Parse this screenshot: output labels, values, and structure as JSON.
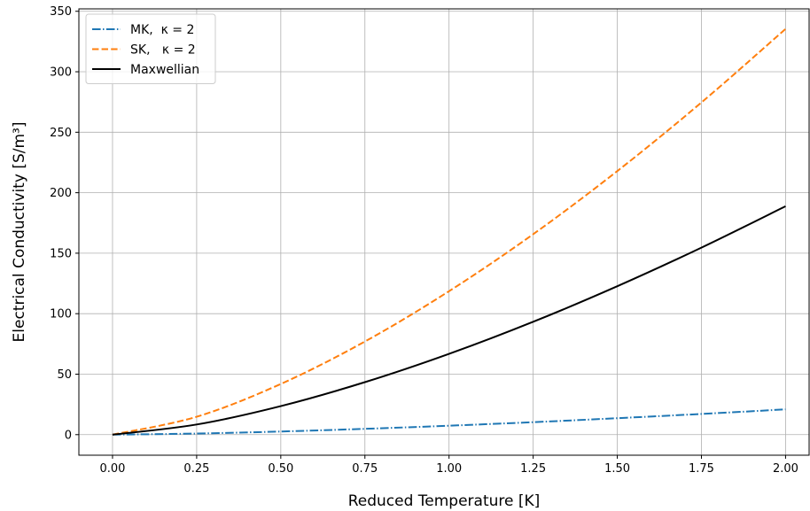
{
  "chart_data": {
    "type": "line",
    "xlabel": "Reduced Temperature [K]",
    "ylabel": "Electrical Conductivity [S/m³]",
    "xlim": [
      -0.1,
      2.07
    ],
    "ylim": [
      -17,
      352
    ],
    "xticks": [
      "0.00",
      "0.25",
      "0.50",
      "0.75",
      "1.00",
      "1.25",
      "1.50",
      "1.75",
      "2.00"
    ],
    "yticks": [
      "0",
      "50",
      "100",
      "150",
      "200",
      "250",
      "300",
      "350"
    ],
    "grid": true,
    "legend_position": "top-left",
    "x": [
      0.0,
      0.25,
      0.5,
      0.75,
      1.0,
      1.25,
      1.5,
      1.75,
      2.0
    ],
    "series": [
      {
        "name": "MK,  κ = 2",
        "color": "#1f77b4",
        "style": "dashdot",
        "values": [
          0.0,
          0.9,
          2.6,
          4.8,
          7.4,
          10.3,
          13.6,
          17.1,
          20.9
        ]
      },
      {
        "name": "SK,   κ = 2",
        "color": "#ff7f0e",
        "style": "dashed",
        "values": [
          0.0,
          14.8,
          41.9,
          77.0,
          118.6,
          165.7,
          217.9,
          274.6,
          335.4
        ]
      },
      {
        "name": "Maxwellian",
        "color": "#000000",
        "style": "solid",
        "values": [
          0.0,
          8.4,
          23.6,
          43.4,
          66.8,
          93.3,
          122.7,
          154.6,
          188.8
        ]
      }
    ]
  }
}
